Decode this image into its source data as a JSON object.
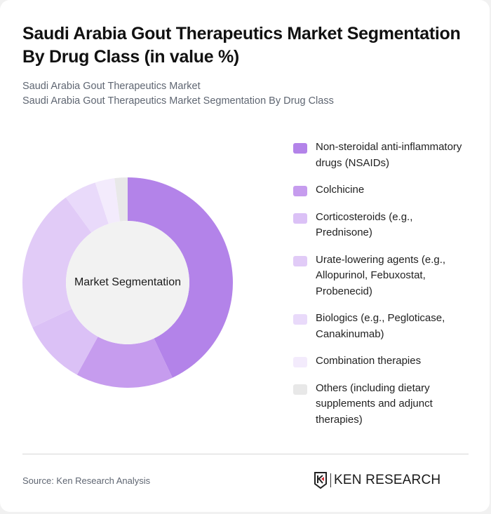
{
  "header": {
    "title": "Saudi Arabia Gout Therapeutics Market Segmentation By Drug Class (in value %)",
    "subtitle_line1": "Saudi Arabia Gout Therapeutics Market",
    "subtitle_line2": "Saudi Arabia Gout Therapeutics Market Segmentation By Drug Class"
  },
  "chart": {
    "center_label": "Market Segmentation"
  },
  "legend": {
    "items": [
      {
        "label": "Non-steroidal anti-inflammatory drugs (NSAIDs)",
        "color": "#b383e9"
      },
      {
        "label": "Colchicine",
        "color": "#c69cee"
      },
      {
        "label": "Corticosteroids (e.g., Prednisone)",
        "color": "#dbc1f6"
      },
      {
        "label": "Urate-lowering agents (e.g., Allopurinol, Febuxostat, Probenecid)",
        "color": "#e1cbf7"
      },
      {
        "label": "Biologics (e.g., Pegloticase, Canakinumab)",
        "color": "#e9dafa"
      },
      {
        "label": "Combination therapies",
        "color": "#f3ebfc"
      },
      {
        "label": "Others (including dietary supplements and adjunct therapies)",
        "color": "#e8e8e8"
      }
    ]
  },
  "footer": {
    "source": "Source: Ken Research Analysis",
    "logo_text": "KEN RESEARCH"
  },
  "chart_data": {
    "type": "pie",
    "subtype": "donut",
    "title": "Saudi Arabia Gout Therapeutics Market Segmentation By Drug Class (in value %)",
    "center_label": "Market Segmentation",
    "categories": [
      "Non-steroidal anti-inflammatory drugs (NSAIDs)",
      "Colchicine",
      "Corticosteroids (e.g., Prednisone)",
      "Urate-lowering agents (e.g., Allopurinol, Febuxostat, Probenecid)",
      "Biologics (e.g., Pegloticase, Canakinumab)",
      "Combination therapies",
      "Others (including dietary supplements and adjunct therapies)"
    ],
    "values": [
      43,
      15,
      10,
      22,
      5,
      3,
      2
    ],
    "colors": [
      "#b383e9",
      "#c69cee",
      "#dbc1f6",
      "#e1cbf7",
      "#e9dafa",
      "#f3ebfc",
      "#e8e8e8"
    ],
    "start_angle": "12 o'clock, clockwise",
    "legend_position": "right",
    "unit": "%"
  }
}
